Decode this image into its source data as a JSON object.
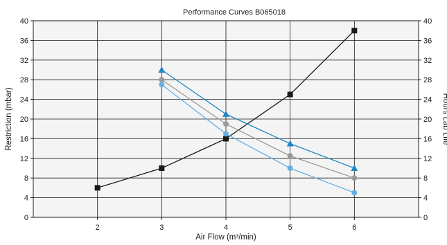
{
  "chart_data": {
    "type": "line",
    "title": "Performance Curves B065018",
    "xlabel": "Air Flow (m³/min)",
    "ylabel": "Restriction (mbar)",
    "ylabel_right": "Hours Lab Life",
    "x_ticks": [
      "2",
      "3",
      "4",
      "5",
      "6"
    ],
    "y_ticks": [
      "0",
      "4",
      "8",
      "12",
      "16",
      "20",
      "24",
      "28",
      "32",
      "36",
      "40"
    ],
    "xlim": [
      1,
      7
    ],
    "ylim": [
      0,
      40
    ],
    "grid": true,
    "series": [
      {
        "marker": "square",
        "color": "#1a1a1a",
        "x": [
          2,
          3,
          4,
          5,
          6
        ],
        "y": [
          6,
          10,
          16,
          25,
          38
        ]
      },
      {
        "marker": "triangle",
        "color": "#1f87c3",
        "x": [
          3,
          4,
          5,
          6
        ],
        "y": [
          30,
          21,
          15,
          10
        ]
      },
      {
        "marker": "circle",
        "color": "#9a9a9a",
        "x": [
          3,
          4,
          5,
          6
        ],
        "y": [
          28,
          19,
          12.5,
          8
        ]
      },
      {
        "marker": "circle",
        "color": "#6aaee0",
        "x": [
          3,
          4,
          5,
          6
        ],
        "y": [
          27,
          17,
          10,
          5
        ]
      }
    ]
  }
}
